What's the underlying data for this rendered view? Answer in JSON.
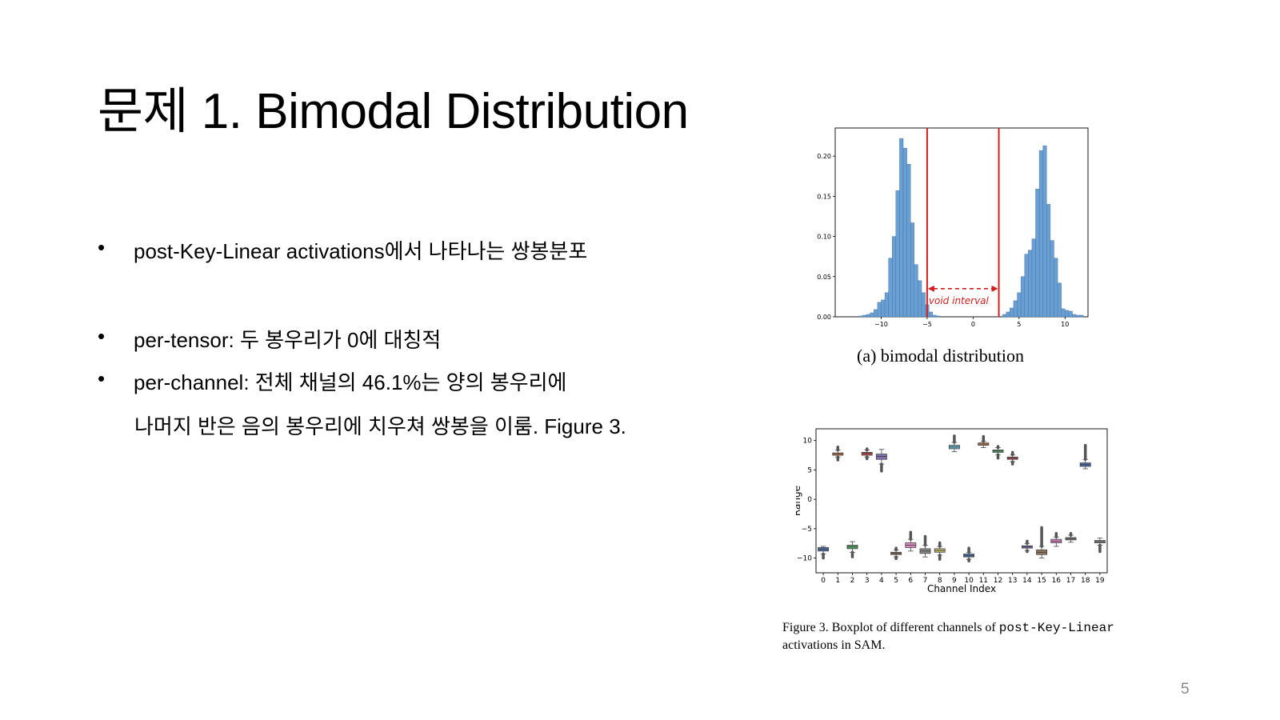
{
  "slide": {
    "title": "문제 1. Bimodal Distribution",
    "bullets": [
      {
        "marker": "•",
        "text": "post-Key-Linear activations에서 나타나는 쌍봉분포"
      },
      {
        "marker": "•",
        "text": "per-tensor: 두 봉우리가 0에 대칭적"
      },
      {
        "marker": "•",
        "text": "per-channel: 전체 채널의 46.1%는  양의 봉우리에"
      }
    ],
    "continuation": "나머지 반은 음의 봉우리에 치우쳐 쌍봉을 이룸. Figure 3.",
    "page_number": "5"
  },
  "figures": {
    "hist_caption": "(a) bimodal distribution",
    "box_caption_prefix": "Figure 3.  Boxplot of different channels of ",
    "box_caption_mono": "post-Key-Linear",
    "box_caption_suffix": "activations in SAM."
  },
  "chart_data": [
    {
      "type": "bar",
      "title": "(a) bimodal distribution",
      "xlabel": "",
      "ylabel": "",
      "xlim": [
        -15,
        12.5
      ],
      "ylim": [
        0,
        0.235
      ],
      "x_ticks": [
        -10,
        -5,
        0,
        5,
        10
      ],
      "x_tick_labels": [
        "−10",
        "−5",
        "0",
        "5",
        "10"
      ],
      "y_ticks": [
        0.0,
        0.05,
        0.1,
        0.15,
        0.2
      ],
      "y_tick_labels": [
        "0.00",
        "0.05",
        "0.10",
        "0.15",
        "0.20"
      ],
      "bar_color": "#6a9fd3",
      "bin_width": 0.4,
      "bins": [
        [
          -12.4,
          0.001
        ],
        [
          -12.0,
          0.002
        ],
        [
          -11.6,
          0.003
        ],
        [
          -11.2,
          0.005
        ],
        [
          -10.8,
          0.009
        ],
        [
          -10.4,
          0.018
        ],
        [
          -10.0,
          0.021
        ],
        [
          -9.6,
          0.03
        ],
        [
          -9.2,
          0.073
        ],
        [
          -8.8,
          0.1
        ],
        [
          -8.4,
          0.157
        ],
        [
          -8.0,
          0.222
        ],
        [
          -7.6,
          0.21
        ],
        [
          -7.2,
          0.19
        ],
        [
          -6.8,
          0.117
        ],
        [
          -6.4,
          0.065
        ],
        [
          -6.0,
          0.045
        ],
        [
          -5.6,
          0.03
        ],
        [
          -5.2,
          0.015
        ],
        [
          -4.8,
          0.006
        ],
        [
          -4.4,
          0.002
        ],
        [
          -4.0,
          0.001
        ],
        [
          3.2,
          0.003
        ],
        [
          3.6,
          0.006
        ],
        [
          4.0,
          0.011
        ],
        [
          4.4,
          0.02
        ],
        [
          4.8,
          0.03
        ],
        [
          5.2,
          0.05
        ],
        [
          5.6,
          0.078
        ],
        [
          6.0,
          0.083
        ],
        [
          6.4,
          0.097
        ],
        [
          6.8,
          0.159
        ],
        [
          7.2,
          0.207
        ],
        [
          7.6,
          0.213
        ],
        [
          8.0,
          0.14
        ],
        [
          8.4,
          0.095
        ],
        [
          8.8,
          0.073
        ],
        [
          9.2,
          0.042
        ],
        [
          9.6,
          0.01
        ],
        [
          10.0,
          0.008
        ],
        [
          10.4,
          0.007
        ],
        [
          10.8,
          0.003
        ],
        [
          11.2,
          0.002
        ],
        [
          11.6,
          0.002
        ]
      ],
      "vlines": [
        -5.0,
        2.8
      ],
      "vline_color": "#d11f1f",
      "annotation": {
        "text": "void interval",
        "x_from": -5.0,
        "x_to": 2.8,
        "y": 0.035
      }
    },
    {
      "type": "boxplot",
      "title": "",
      "xlabel": "Channel Index",
      "ylabel": "Range",
      "ylim": [
        -12.5,
        12
      ],
      "y_ticks": [
        -10,
        -5,
        0,
        5,
        10
      ],
      "y_tick_labels": [
        "−10",
        "−5",
        "0",
        "5",
        "10"
      ],
      "categories": [
        "0",
        "1",
        "2",
        "3",
        "4",
        "5",
        "6",
        "7",
        "8",
        "9",
        "10",
        "11",
        "12",
        "13",
        "14",
        "15",
        "16",
        "17",
        "18",
        "19"
      ],
      "boxes": [
        {
          "q1": -8.8,
          "median": -8.5,
          "q3": -8.2,
          "wlo": -9.3,
          "whi": -8.0,
          "outlier_lo": -10.0,
          "outlier_hi": null,
          "color": "#4c72b0"
        },
        {
          "q1": 7.5,
          "median": 7.7,
          "q3": 7.9,
          "wlo": 7.2,
          "whi": 8.4,
          "outlier_lo": 6.7,
          "outlier_hi": 8.9,
          "color": "#dd8452"
        },
        {
          "q1": -8.4,
          "median": -8.1,
          "q3": -7.8,
          "wlo": -9.0,
          "whi": -7.2,
          "outlier_lo": -9.8,
          "outlier_hi": null,
          "color": "#55a868"
        },
        {
          "q1": 7.5,
          "median": 7.8,
          "q3": 8.0,
          "wlo": 7.2,
          "whi": 8.4,
          "outlier_lo": 6.9,
          "outlier_hi": 8.6,
          "color": "#c44e52"
        },
        {
          "q1": 6.8,
          "median": 7.3,
          "q3": 7.7,
          "wlo": 6.0,
          "whi": 8.5,
          "outlier_lo": 4.8,
          "outlier_hi": null,
          "color": "#8172b3"
        },
        {
          "q1": -9.4,
          "median": -9.2,
          "q3": -9.0,
          "wlo": -9.8,
          "whi": -8.6,
          "outlier_lo": -10.1,
          "outlier_hi": -8.3,
          "color": "#937860"
        },
        {
          "q1": -8.2,
          "median": -7.8,
          "q3": -7.4,
          "wlo": -8.8,
          "whi": -6.8,
          "outlier_lo": null,
          "outlier_hi": -5.6,
          "color": "#da8bc3"
        },
        {
          "q1": -9.2,
          "median": -8.8,
          "q3": -8.4,
          "wlo": -9.8,
          "whi": -7.8,
          "outlier_lo": null,
          "outlier_hi": -6.3,
          "color": "#8c8c8c"
        },
        {
          "q1": -9.0,
          "median": -8.7,
          "q3": -8.4,
          "wlo": -9.5,
          "whi": -8.0,
          "outlier_lo": -10.2,
          "outlier_hi": -7.4,
          "color": "#ccb974"
        },
        {
          "q1": 8.6,
          "median": 8.9,
          "q3": 9.2,
          "wlo": 8.1,
          "whi": 9.7,
          "outlier_lo": null,
          "outlier_hi": 10.8,
          "color": "#64b5cd"
        },
        {
          "q1": -9.8,
          "median": -9.6,
          "q3": -9.3,
          "wlo": -10.2,
          "whi": -9.0,
          "outlier_lo": -10.5,
          "outlier_hi": -8.3,
          "color": "#4c72b0"
        },
        {
          "q1": 9.2,
          "median": 9.4,
          "q3": 9.6,
          "wlo": 8.8,
          "whi": 9.9,
          "outlier_lo": null,
          "outlier_hi": 10.7,
          "color": "#dd8452"
        },
        {
          "q1": 8.0,
          "median": 8.2,
          "q3": 8.4,
          "wlo": 7.6,
          "whi": 8.8,
          "outlier_lo": 7.0,
          "outlier_hi": 9.0,
          "color": "#55a868"
        },
        {
          "q1": 6.8,
          "median": 7.0,
          "q3": 7.2,
          "wlo": 6.4,
          "whi": 7.6,
          "outlier_lo": 6.0,
          "outlier_hi": 8.0,
          "color": "#c44e52"
        },
        {
          "q1": -8.3,
          "median": -8.1,
          "q3": -7.9,
          "wlo": -8.7,
          "whi": -7.5,
          "outlier_lo": -8.9,
          "outlier_hi": -7.1,
          "color": "#8172b3"
        },
        {
          "q1": -9.4,
          "median": -9.0,
          "q3": -8.6,
          "wlo": -10.0,
          "whi": -8.0,
          "outlier_lo": null,
          "outlier_hi": -4.8,
          "color": "#937860"
        },
        {
          "q1": -7.4,
          "median": -7.1,
          "q3": -6.8,
          "wlo": -8.0,
          "whi": -6.4,
          "outlier_lo": null,
          "outlier_hi": -5.8,
          "color": "#da8bc3"
        },
        {
          "q1": -6.9,
          "median": -6.7,
          "q3": -6.5,
          "wlo": -7.3,
          "whi": -6.1,
          "outlier_lo": null,
          "outlier_hi": -5.8,
          "color": "#8c8c8c"
        },
        {
          "q1": 5.6,
          "median": 5.9,
          "q3": 6.2,
          "wlo": 5.2,
          "whi": 6.8,
          "outlier_lo": null,
          "outlier_hi": 9.2,
          "color": "#4c72b0"
        },
        {
          "q1": -7.4,
          "median": -7.2,
          "q3": -7.0,
          "wlo": -7.8,
          "whi": -6.6,
          "outlier_lo": -8.9,
          "outlier_hi": null,
          "color": "#8c8c8c"
        }
      ]
    }
  ]
}
